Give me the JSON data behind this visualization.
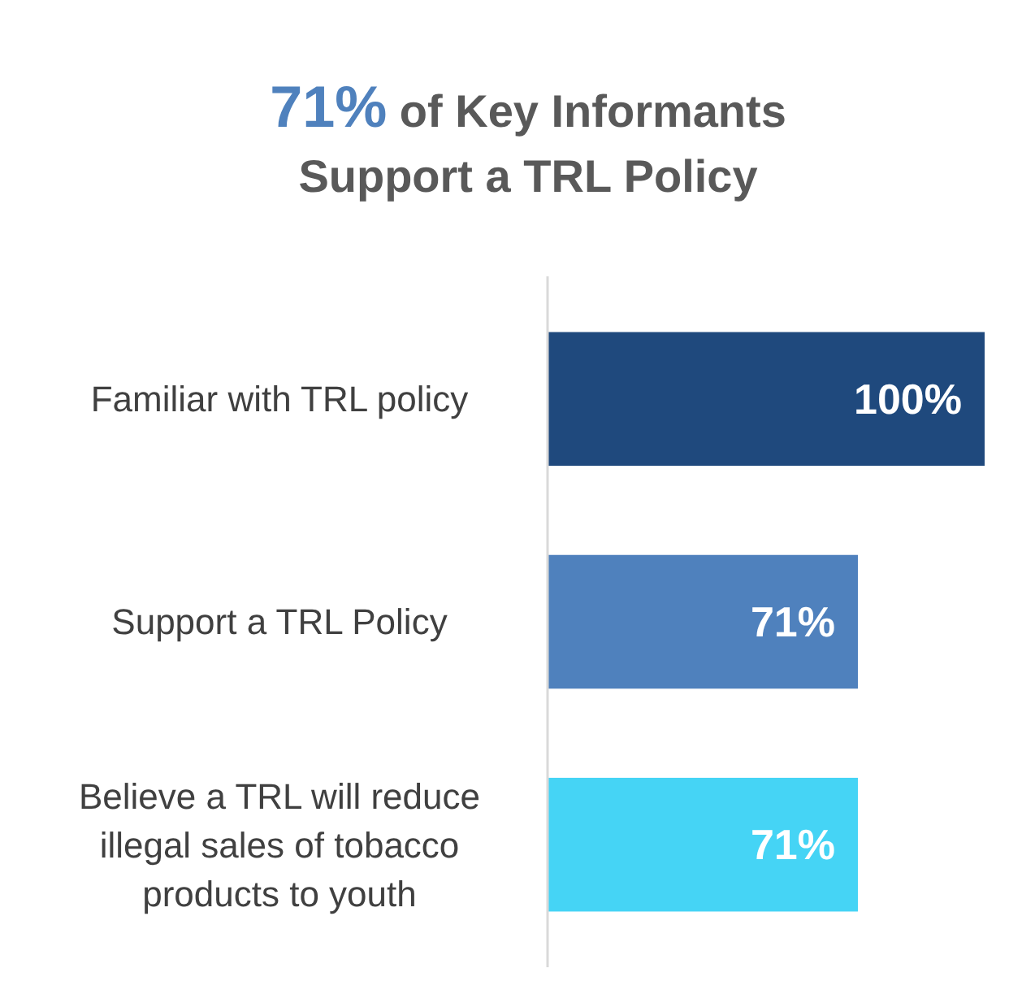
{
  "chart_data": {
    "type": "bar",
    "orientation": "horizontal",
    "title": "71% of Key Informants Support a TRL Policy",
    "categories": [
      "Familiar with TRL policy",
      "Support a TRL Policy",
      "Believe a TRL will reduce illegal sales of tobacco products to youth"
    ],
    "values": [
      100,
      71,
      71
    ],
    "colors": [
      "#1f497d",
      "#4f81bd",
      "#45d4f5"
    ],
    "value_labels": [
      "100%",
      "71%",
      "71%"
    ],
    "xlim": [
      0,
      100
    ],
    "tick_labels": "y"
  }
}
